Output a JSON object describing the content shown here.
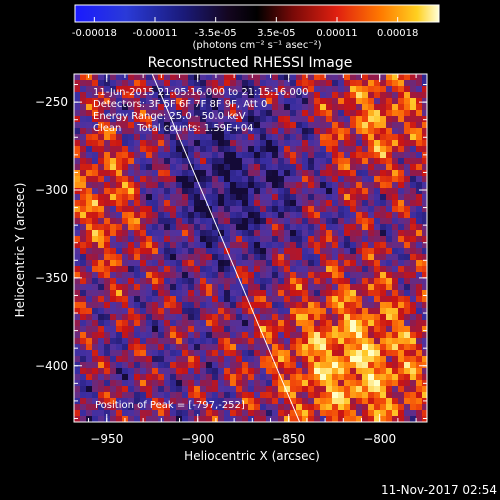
{
  "chart_data": {
    "type": "heatmap",
    "title": "Reconstructed RHESSI Image",
    "xlabel": "Heliocentric X (arcsec)",
    "ylabel": "Heliocentric Y (arcsec)",
    "xlim": [
      -968,
      -774
    ],
    "ylim": [
      -432,
      -234
    ],
    "x_ticks": [
      -950,
      -900,
      -850,
      -800
    ],
    "y_ticks": [
      -400,
      -350,
      -300,
      -250
    ],
    "colorbar": {
      "ticks": [
        "-0.00018",
        "-0.00011",
        "-3.5e-05",
        "3.5e-05",
        "0.00011",
        "0.00018"
      ],
      "unit_label": "(photons cm⁻² s⁻¹ asec⁻²)",
      "range": [
        -0.00018,
        0.00018
      ]
    },
    "annotations": [
      "11-Jun-2015 21:05:16.000 to 21:15:16.000",
      "Detectors: 3F 5F 6F 7F 8F 9F, Att 0",
      "Energy Range: 25.0 - 50.0 keV",
      "Clean     Total counts: 1.59E+04"
    ],
    "peak_label": "Position of Peak = [-797,-252]",
    "limb_line": [
      [
        -925,
        -234
      ],
      [
        -844,
        -432
      ]
    ]
  },
  "footer_timestamp": "11-Nov-2017 02:54"
}
